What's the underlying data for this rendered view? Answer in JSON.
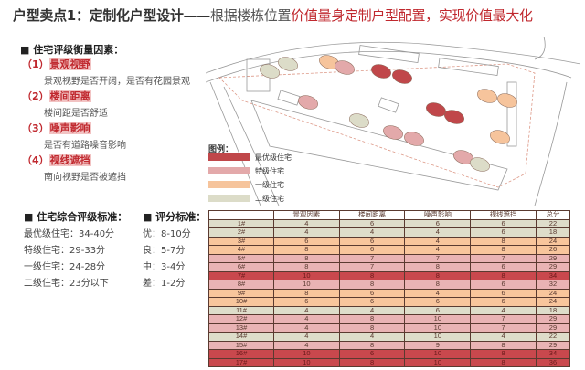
{
  "title": {
    "part1": "户型卖点1：定制化户型设计——",
    "part2": "根据楼栋位置",
    "part3": "价值量身定制户型配置，实现价值最大化"
  },
  "factors": {
    "heading": "■ 住宅评级衡量因素：",
    "items": [
      {
        "num": "（1）",
        "label": "景观视野",
        "desc": "景观视野是否开阔，是否有花园景观"
      },
      {
        "num": "（2）",
        "label": "楼间距离",
        "desc": "楼间距是否舒适"
      },
      {
        "num": "（3）",
        "label": "噪声影响",
        "desc": "是否有道路噪音影响"
      },
      {
        "num": "（4）",
        "label": "视线遮挡",
        "desc": "南向视野是否被遮挡"
      }
    ]
  },
  "grade_standard": {
    "heading": "■ 住宅综合评级标准：",
    "items": [
      "最优级住宅：34-40分",
      "特级住宅：29-33分",
      "一级住宅：24-28分",
      "二级住宅：23分以下"
    ]
  },
  "score_standard": {
    "heading": "■ 评分标准：",
    "items": [
      "优：8-10分",
      "良：5-7分",
      "中：3-4分",
      "差：1-2分"
    ]
  },
  "legend": {
    "title": "图例：",
    "items": [
      {
        "label": "最优级住宅",
        "color": "#c0474a"
      },
      {
        "label": "特级住宅",
        "color": "#e3a9aa"
      },
      {
        "label": "一级住宅",
        "color": "#f6c49c"
      },
      {
        "label": "二级住宅",
        "color": "#dcdcc8"
      }
    ]
  },
  "table": {
    "headers": [
      "",
      "景观因素",
      "楼间距离",
      "噪声影响",
      "视线遮挡",
      "总分"
    ],
    "rows": [
      [
        "1#",
        "4",
        "6",
        "6",
        "6",
        "22"
      ],
      [
        "2#",
        "4",
        "4",
        "4",
        "6",
        "18"
      ],
      [
        "3#",
        "6",
        "6",
        "4",
        "8",
        "24"
      ],
      [
        "4#",
        "8",
        "6",
        "4",
        "8",
        "26"
      ],
      [
        "5#",
        "8",
        "7",
        "7",
        "7",
        "29"
      ],
      [
        "6#",
        "8",
        "7",
        "8",
        "6",
        "29"
      ],
      [
        "7#",
        "10",
        "8",
        "8",
        "8",
        "34"
      ],
      [
        "8#",
        "10",
        "8",
        "8",
        "6",
        "32"
      ],
      [
        "9#",
        "8",
        "6",
        "4",
        "6",
        "24"
      ],
      [
        "10#",
        "6",
        "6",
        "6",
        "6",
        "24"
      ],
      [
        "11#",
        "4",
        "4",
        "6",
        "4",
        "18"
      ],
      [
        "12#",
        "4",
        "8",
        "10",
        "7",
        "29"
      ],
      [
        "13#",
        "4",
        "8",
        "10",
        "7",
        "29"
      ],
      [
        "14#",
        "4",
        "4",
        "10",
        "4",
        "22"
      ],
      [
        "15#",
        "4",
        "8",
        "9",
        "8",
        "29"
      ],
      [
        "16#",
        "10",
        "6",
        "10",
        "8",
        "34"
      ],
      [
        "17#",
        "10",
        "8",
        "10",
        "8",
        "36"
      ]
    ]
  }
}
